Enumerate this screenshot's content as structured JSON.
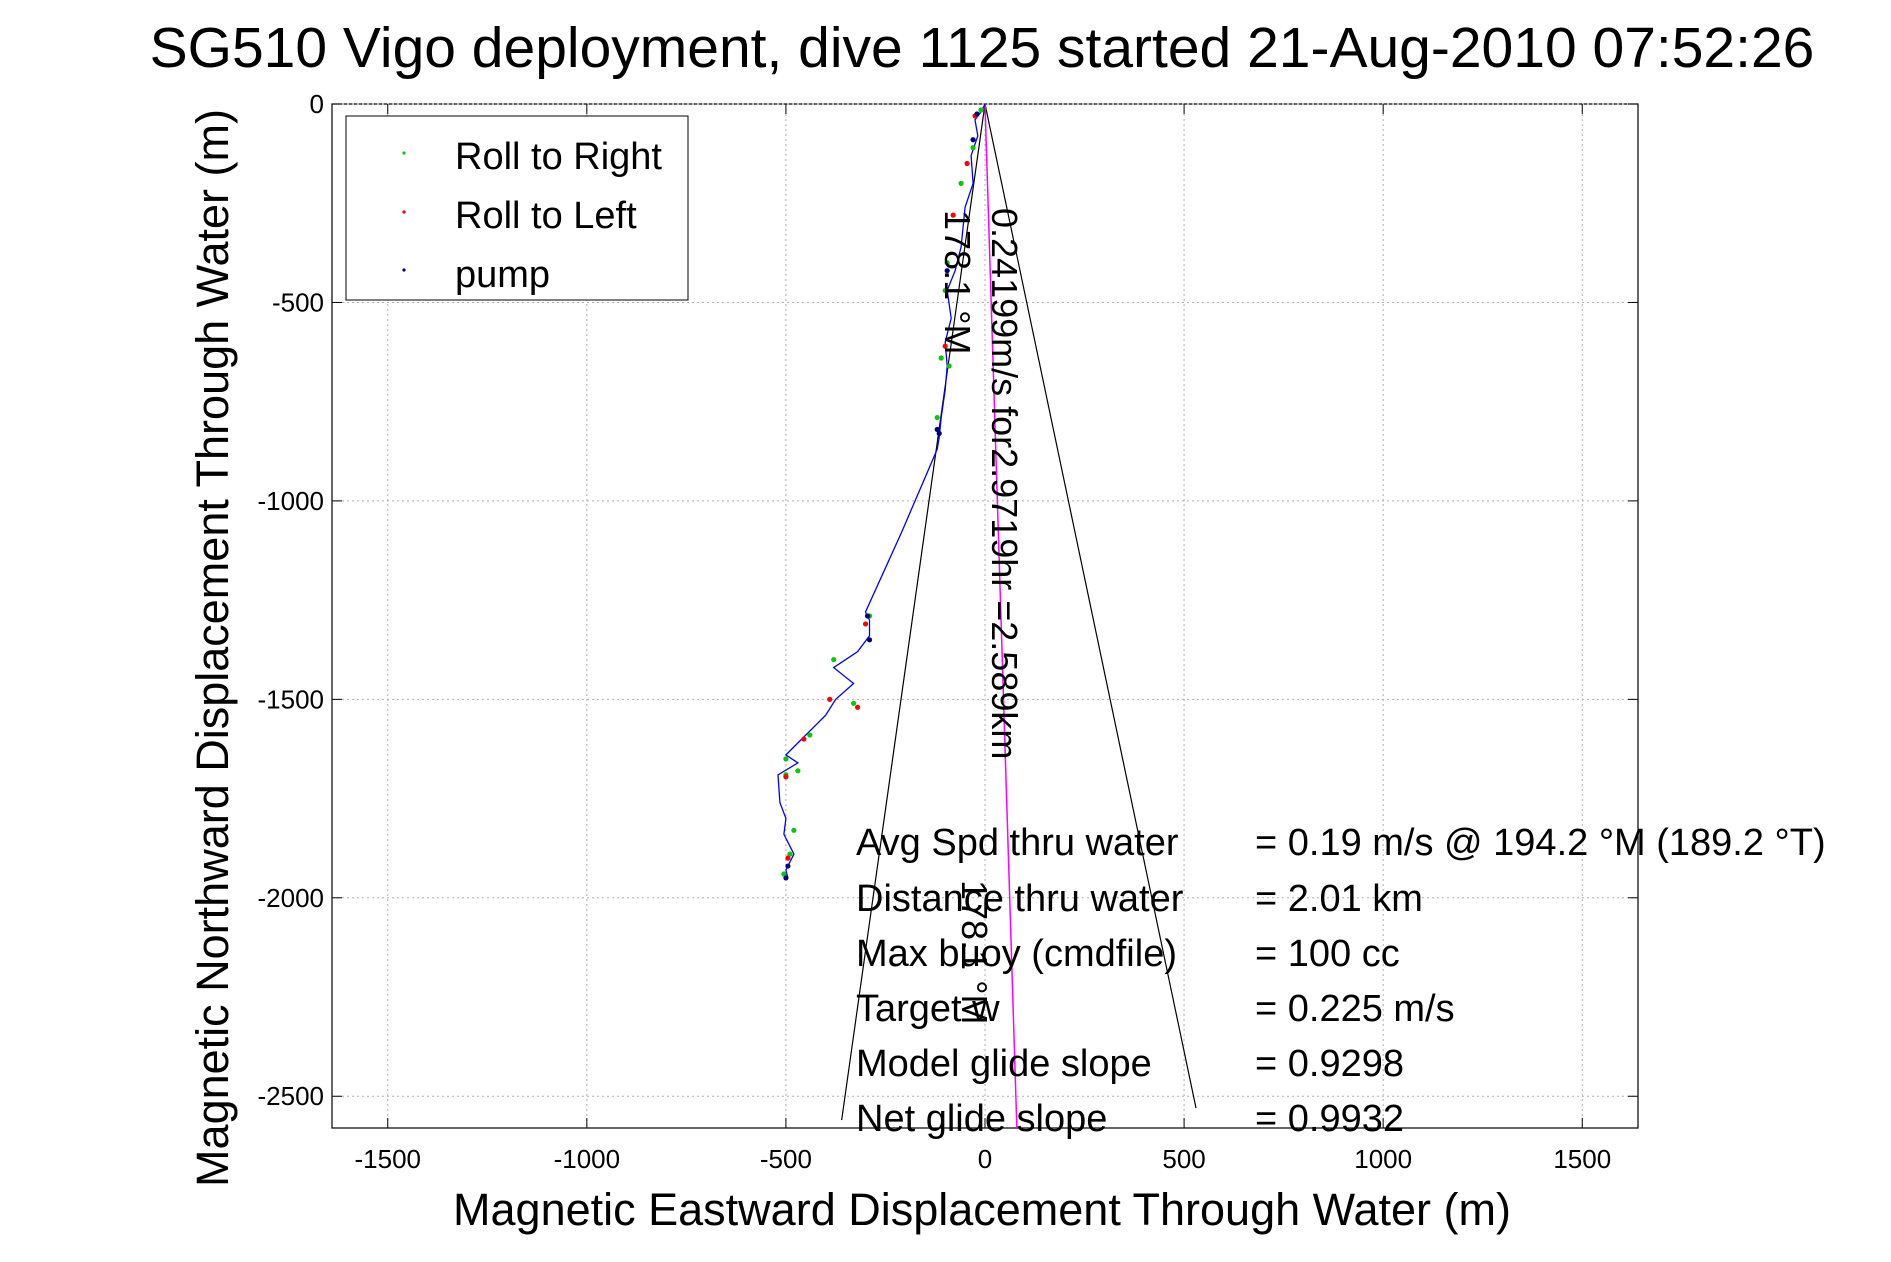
{
  "chart_data": {
    "type": "scatter",
    "title": "SG510 Vigo deployment, dive 1125 started 21-Aug-2010 07:52:26",
    "xlabel": "Magnetic Eastward Displacement Through Water (m)",
    "ylabel": "Magnetic Northward Displacement Through Water (m)",
    "xlim": [
      -1640,
      1640
    ],
    "ylim": [
      -2580,
      0
    ],
    "xticks": [
      -1500,
      -1000,
      -500,
      0,
      500,
      1000,
      1500
    ],
    "yticks": [
      0,
      -500,
      -1000,
      -1500,
      -2000,
      -2500
    ],
    "xtick_labels": [
      "-1500",
      "-1000",
      "-500",
      "0",
      "500",
      "1000",
      "1500"
    ],
    "ytick_labels": [
      "0",
      "-500",
      "-1000",
      "-1500",
      "-2000",
      "-2500"
    ],
    "grid": true,
    "legend_position": "top-left",
    "legend": [
      {
        "label": "Roll to Right",
        "color": "#00cc00"
      },
      {
        "label": "Roll to Left",
        "color": "#ff0000"
      },
      {
        "label": "pump",
        "color": "#000080"
      }
    ],
    "track": {
      "color": "#0000ff",
      "x": [
        0,
        -10,
        -25,
        -18,
        -35,
        -30,
        -50,
        -55,
        -60,
        -75,
        -95,
        -85,
        -100,
        -95,
        -100,
        -110,
        -115,
        -120,
        -210,
        -300,
        -290,
        -290,
        -320,
        -380,
        -330,
        -375,
        -400,
        -440,
        -460,
        -500,
        -470,
        -520,
        -515,
        -500,
        -505,
        -490,
        -480,
        -490,
        -500,
        -495
      ],
      "y": [
        0,
        -20,
        -40,
        -80,
        -130,
        -200,
        -260,
        -310,
        -360,
        -420,
        -470,
        -540,
        -600,
        -660,
        -720,
        -790,
        -840,
        -870,
        -1080,
        -1280,
        -1300,
        -1340,
        -1380,
        -1420,
        -1460,
        -1500,
        -1540,
        -1580,
        -1600,
        -1640,
        -1660,
        -1690,
        -1760,
        -1800,
        -1840,
        -1870,
        -1890,
        -1910,
        -1930,
        -1950
      ]
    },
    "roll_right_points": {
      "x": [
        -10,
        -30,
        -60,
        -95,
        -100,
        -110,
        -90,
        -120,
        -290,
        -380,
        -330,
        -440,
        -500,
        -470,
        -500,
        -480,
        -490,
        -505
      ],
      "y": [
        -15,
        -110,
        -200,
        -400,
        -470,
        -640,
        -660,
        -790,
        -1290,
        -1400,
        -1510,
        -1590,
        -1650,
        -1680,
        -1690,
        -1830,
        -1890,
        -1940
      ]
    },
    "roll_left_points": {
      "x": [
        -25,
        -45,
        -80,
        -100,
        -300,
        -390,
        -320,
        -455,
        -500,
        -495
      ],
      "y": [
        -30,
        -150,
        -280,
        -610,
        -1310,
        -1500,
        -1520,
        -1600,
        -1695,
        -1900
      ]
    },
    "pump_points": {
      "x": [
        -20,
        -30,
        -95,
        -120,
        -115,
        -295,
        -290,
        -495,
        -500
      ],
      "y": [
        -25,
        -90,
        -420,
        -820,
        -830,
        -1290,
        -1350,
        -1920,
        -1950
      ]
    },
    "current_vector": {
      "color": "#ff00ff",
      "x": [
        0,
        80
      ],
      "y": [
        0,
        -2580
      ]
    },
    "cone_lines": {
      "color": "#000000",
      "left": {
        "x": [
          0,
          -360
        ],
        "y": [
          0,
          -2560
        ]
      },
      "right": {
        "x": [
          0,
          530
        ],
        "y": [
          0,
          -2530
        ]
      }
    },
    "annotations": {
      "heading_cone": "178.1 °M",
      "current": "0.24199m/s for2.9719hr =2.589km",
      "current_heading": "178.1 °M"
    },
    "stats": [
      {
        "label": "Avg Spd thru water",
        "value": "=  0.19 m/s @ 194.2 °M (189.2 °T)"
      },
      {
        "label": "Distance thru water",
        "value": "=  2.01 km"
      },
      {
        "label": "Max buoy (cmdfile)",
        "value": "= 100 cc"
      },
      {
        "label": "Target w",
        "value": "= 0.225 m/s"
      },
      {
        "label": "Model glide slope",
        "value": "= 0.9298"
      },
      {
        "label": "Net glide slope",
        "value": "= 0.9932"
      }
    ]
  }
}
